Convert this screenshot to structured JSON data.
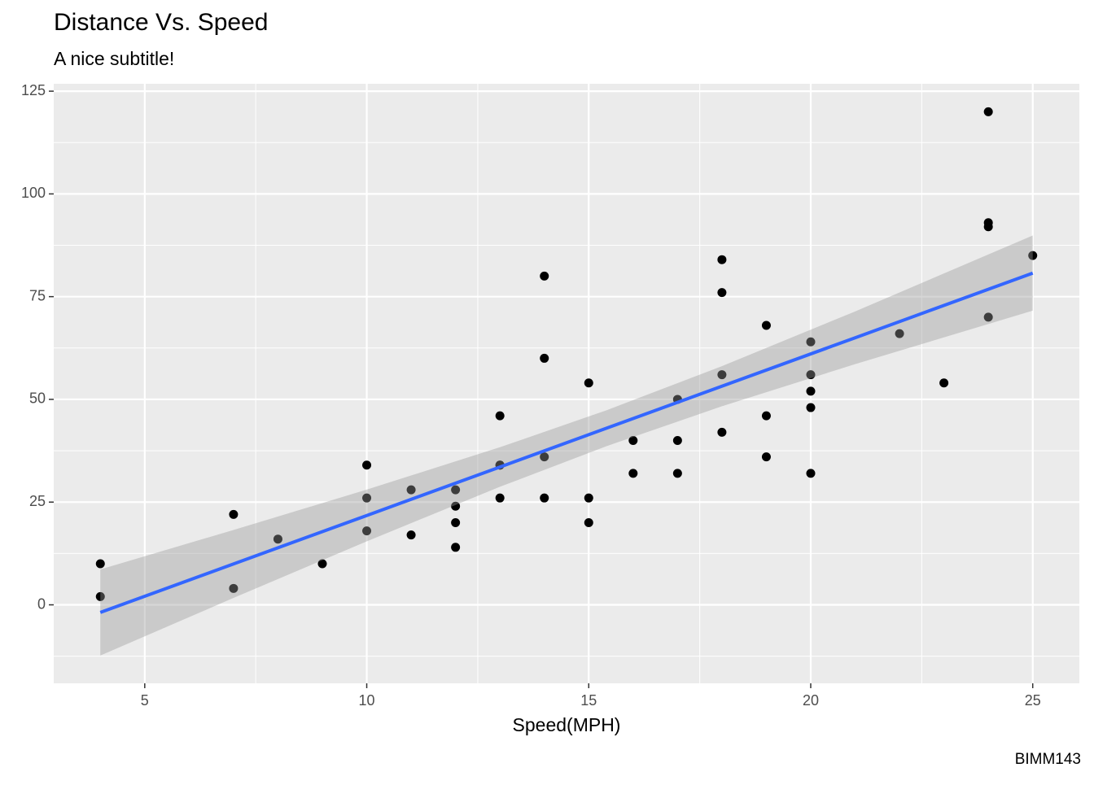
{
  "chart_data": {
    "type": "scatter",
    "title": "Distance Vs. Speed",
    "subtitle": "A nice subtitle!",
    "x_label": "Speed(MPH)",
    "caption": "BIMM143",
    "x": [
      4,
      4,
      7,
      7,
      8,
      9,
      10,
      10,
      10,
      11,
      11,
      12,
      12,
      12,
      12,
      13,
      13,
      13,
      13,
      14,
      14,
      14,
      14,
      15,
      15,
      15,
      16,
      16,
      17,
      17,
      17,
      18,
      18,
      18,
      18,
      19,
      19,
      19,
      20,
      20,
      20,
      20,
      20,
      22,
      23,
      24,
      24,
      24,
      24,
      25
    ],
    "values": [
      2,
      10,
      4,
      22,
      16,
      10,
      18,
      26,
      34,
      17,
      28,
      14,
      20,
      24,
      28,
      26,
      34,
      34,
      46,
      26,
      36,
      60,
      80,
      20,
      26,
      54,
      32,
      40,
      32,
      40,
      50,
      42,
      56,
      76,
      84,
      36,
      46,
      68,
      32,
      48,
      52,
      56,
      64,
      66,
      54,
      70,
      92,
      93,
      120,
      85
    ],
    "color": "#000000",
    "fit": {
      "color": "#3366ff",
      "band_color": "#999999",
      "x": [
        4,
        7,
        10,
        13,
        15.4,
        18,
        21,
        25
      ],
      "y": [
        -1.85,
        9.95,
        21.74,
        33.54,
        42.98,
        53.2,
        64.99,
        80.73
      ],
      "lower": [
        -12.33,
        1.68,
        15.45,
        28.73,
        38.61,
        48.32,
        58.58,
        71.59
      ],
      "upper": [
        8.63,
        18.22,
        28.03,
        38.35,
        47.35,
        58.08,
        71.4,
        89.87
      ]
    },
    "xlim": [
      2.95,
      26.05
    ],
    "xticks": [
      5,
      10,
      15,
      20,
      25
    ],
    "ylim": [
      -19.1,
      126.8
    ],
    "yticks": [
      0,
      25,
      50,
      75,
      100,
      125
    ],
    "grid": true
  }
}
